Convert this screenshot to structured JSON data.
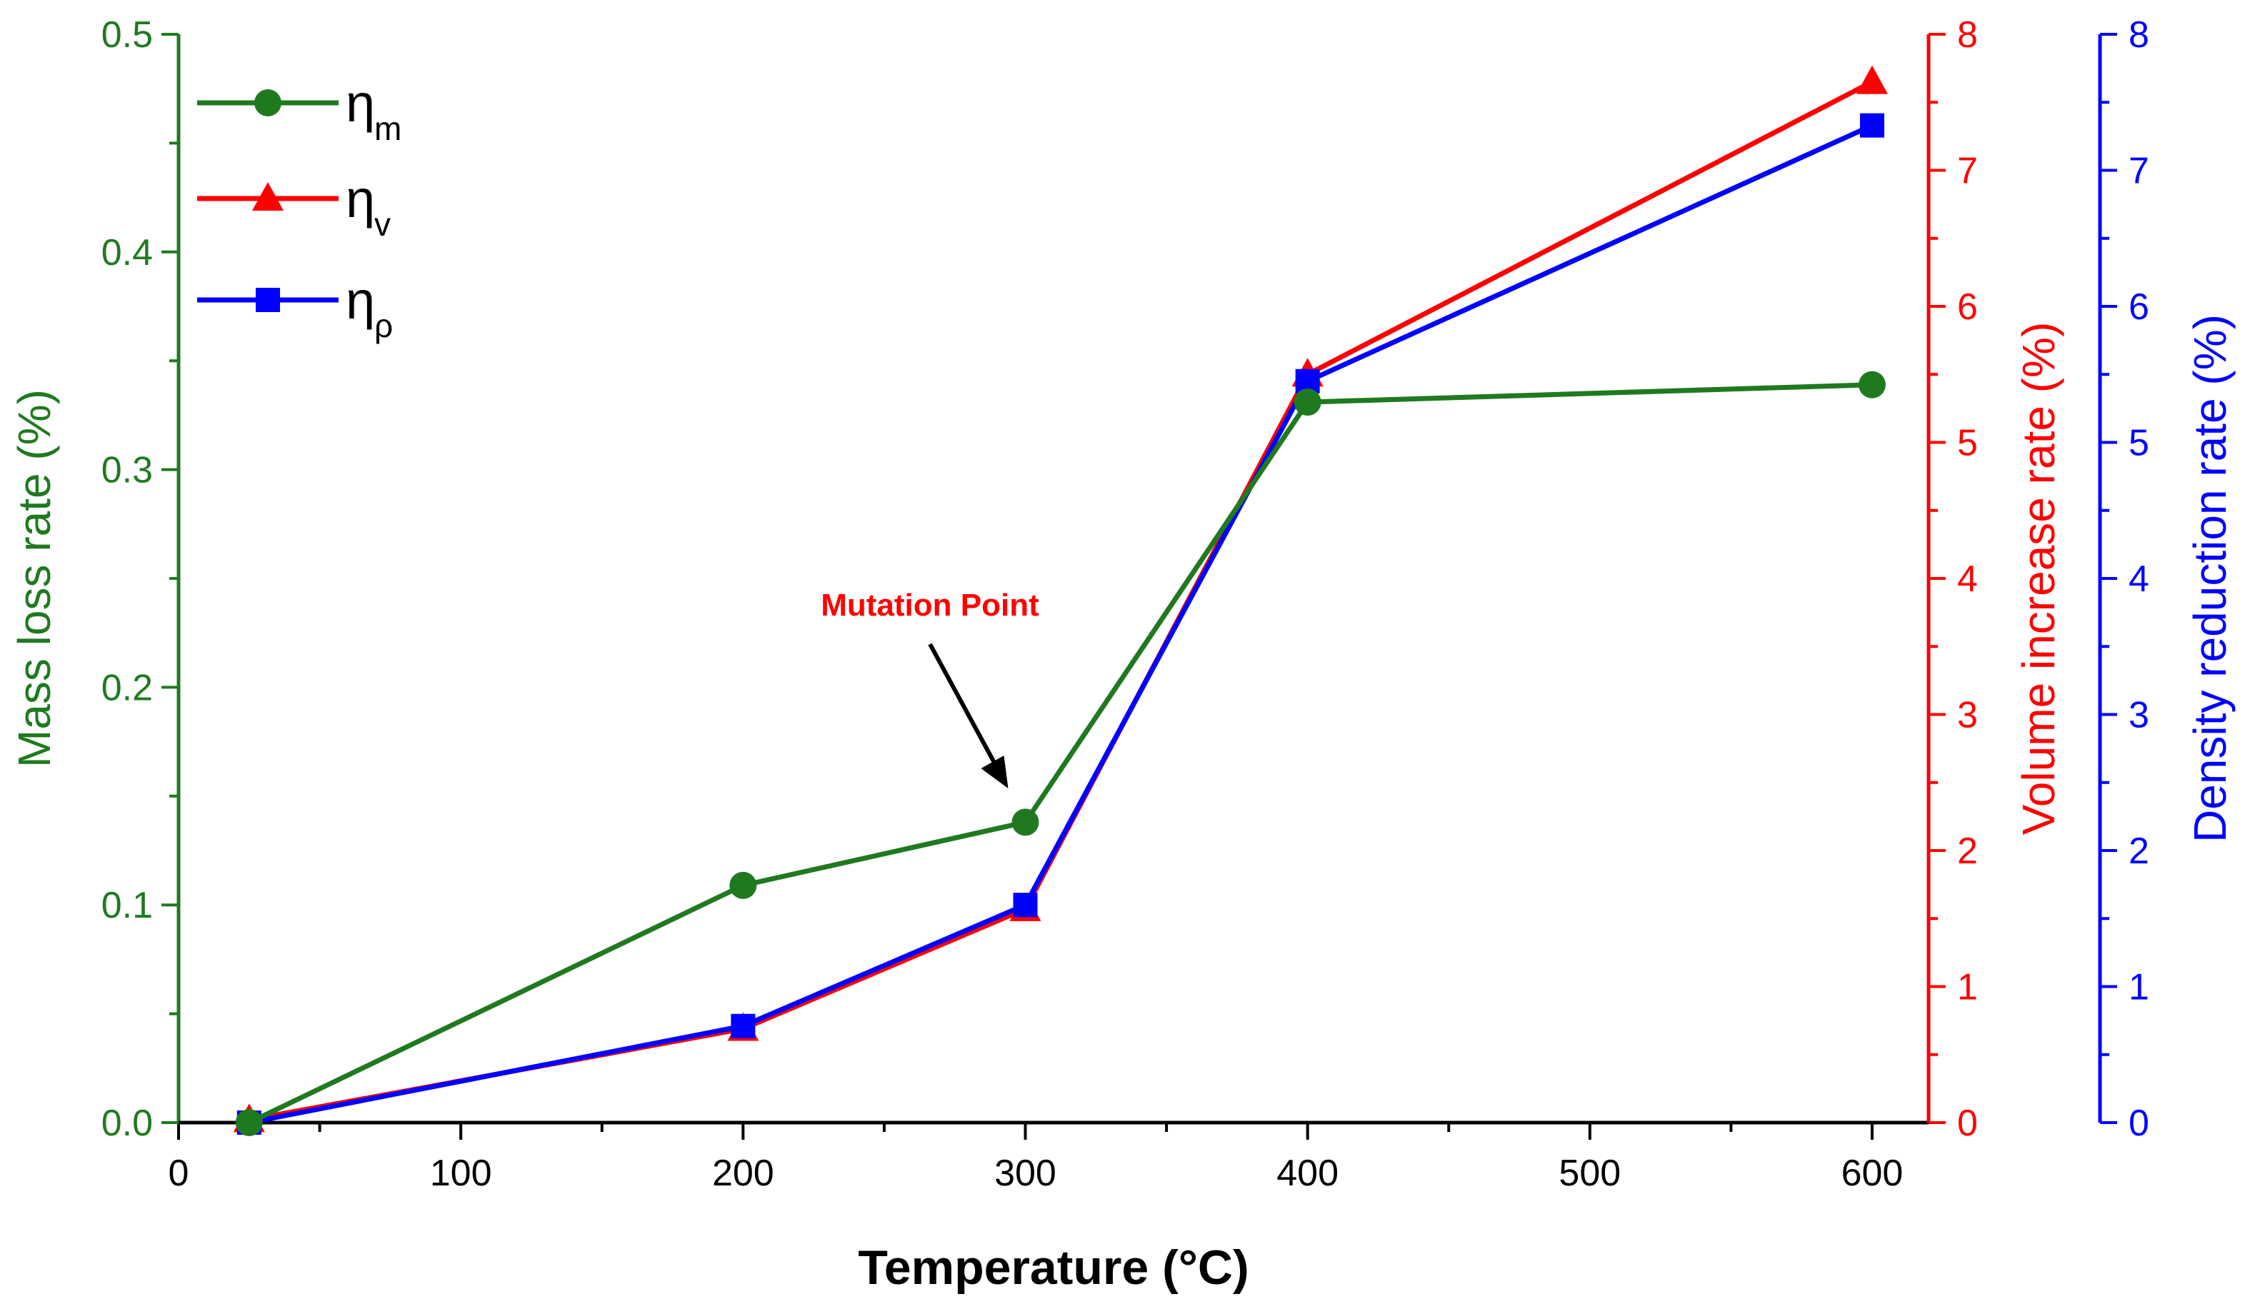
{
  "chart_data": {
    "type": "line",
    "xlabel": "Temperature (°C)",
    "xlim": [
      0,
      620
    ],
    "x_ticks": [
      0,
      100,
      200,
      300,
      400,
      500,
      600
    ],
    "x": [
      25,
      200,
      300,
      400,
      600
    ],
    "axes": {
      "left": {
        "label": "Mass loss rate (%)",
        "lim": [
          0,
          0.5
        ],
        "ticks": [
          "0.0",
          "0.1",
          "0.2",
          "0.3",
          "0.4",
          "0.5"
        ],
        "color": "#1f7a1f"
      },
      "right1": {
        "label": "Volume increase rate (%)",
        "lim": [
          0,
          8
        ],
        "ticks": [
          "0",
          "1",
          "2",
          "3",
          "4",
          "5",
          "6",
          "7",
          "8"
        ],
        "color": "#ff0000"
      },
      "right2": {
        "label": "Density reduction rate (%)",
        "lim": [
          0,
          8
        ],
        "ticks": [
          "0",
          "1",
          "2",
          "3",
          "4",
          "5",
          "6",
          "7",
          "8"
        ],
        "color": "#0000ff"
      }
    },
    "series": [
      {
        "name": "η_m",
        "symbol": "η",
        "subscript": "m",
        "axis": "left",
        "marker": "circle",
        "color": "#1f7a1f",
        "values": [
          0.0,
          0.109,
          0.138,
          0.331,
          0.339
        ]
      },
      {
        "name": "η_v",
        "symbol": "η",
        "subscript": "v",
        "axis": "right1",
        "marker": "triangle",
        "color": "#ff0000",
        "values": [
          0.02,
          0.69,
          1.57,
          5.5,
          7.65
        ]
      },
      {
        "name": "η_ρ",
        "symbol": "η",
        "subscript": "ρ",
        "axis": "right2",
        "marker": "square",
        "color": "#0000ff",
        "values": [
          0.0,
          0.71,
          1.6,
          5.45,
          7.33
        ]
      }
    ],
    "annotation": {
      "text": "Mutation Point",
      "color": "#ff0000",
      "arrow_to_x": 300
    },
    "legend": "top-left"
  }
}
